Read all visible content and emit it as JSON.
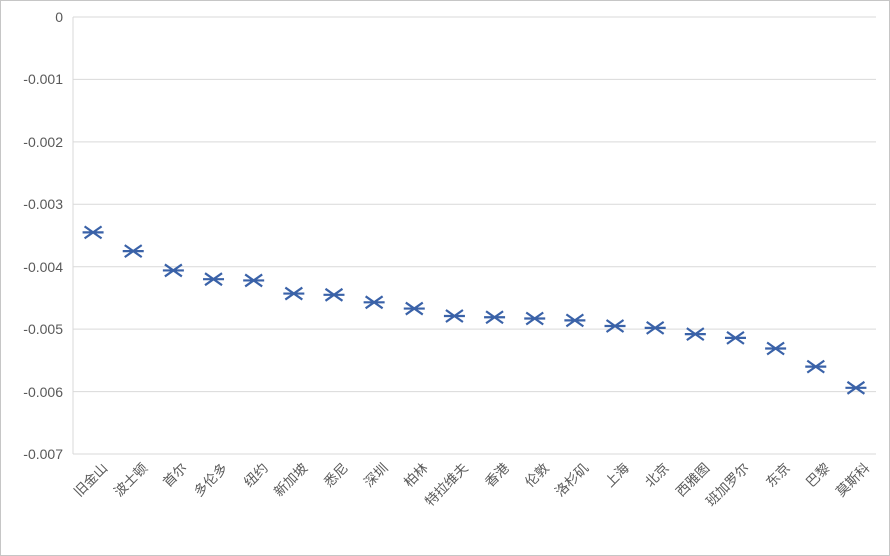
{
  "chart_data": {
    "type": "scatter",
    "marker_style": "asterisk-x-horizontal",
    "title": "",
    "xlabel": "",
    "ylabel": "",
    "categories": [
      "旧金山",
      "波士顿",
      "首尔",
      "多伦多",
      "纽约",
      "新加坡",
      "悉尼",
      "深圳",
      "柏林",
      "特拉维夫",
      "香港",
      "伦敦",
      "洛杉矶",
      "上海",
      "北京",
      "西雅图",
      "班加罗尔",
      "东京",
      "巴黎",
      "莫斯科"
    ],
    "values": [
      -0.00345,
      -0.00375,
      -0.00406,
      -0.0042,
      -0.00422,
      -0.00443,
      -0.00445,
      -0.00457,
      -0.00467,
      -0.00479,
      -0.00481,
      -0.00483,
      -0.00486,
      -0.00495,
      -0.00498,
      -0.00508,
      -0.00514,
      -0.00531,
      -0.0056,
      -0.00594
    ],
    "ylim": [
      -0.007,
      0
    ],
    "yticks": [
      0,
      -0.001,
      -0.002,
      -0.003,
      -0.004,
      -0.005,
      -0.006,
      -0.007
    ],
    "ytick_labels": [
      "0",
      "-0.001",
      "-0.002",
      "-0.003",
      "-0.004",
      "-0.005",
      "-0.006",
      "-0.007"
    ],
    "grid": true,
    "legend": false,
    "colors": {
      "marker": "#3a62a8",
      "gridline": "#d9d9d9",
      "axis_line": "#d9d9d9",
      "tick_text": "#595959",
      "frame_border": "#c6c6c6",
      "background": "#ffffff"
    }
  }
}
